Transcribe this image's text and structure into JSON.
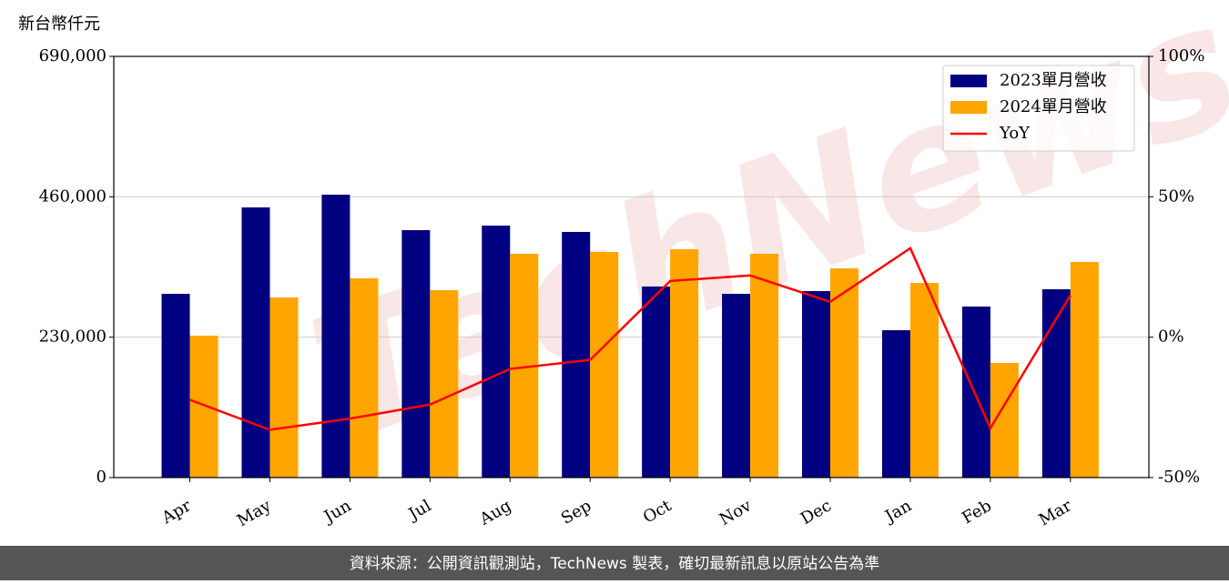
{
  "chart_data": {
    "type": "bar_line",
    "y_label": "新台幣仟元",
    "categories": [
      "Apr",
      "May",
      "Jun",
      "Jul",
      "Aug",
      "Sep",
      "Oct",
      "Nov",
      "Dec",
      "Jan",
      "Feb",
      "Mar"
    ],
    "series": [
      {
        "name": "2023單月營收",
        "color": "#000080",
        "type": "bar",
        "values": [
          301000,
          442600,
          463500,
          405400,
          412800,
          402400,
          313000,
          301000,
          305500,
          241400,
          280200,
          308500
        ]
      },
      {
        "name": "2024單月營收",
        "color": "#ffa500",
        "type": "bar",
        "values": [
          232500,
          295100,
          326400,
          307000,
          366600,
          369600,
          374100,
          366600,
          342800,
          318900,
          187800,
          353200
        ]
      },
      {
        "name": "YoY",
        "color": "#ff0000",
        "type": "line",
        "axis": "y2",
        "values": [
          -22.3,
          -33,
          -29,
          -24,
          -11.3,
          -8.1,
          20,
          22,
          12.6,
          31.7,
          -32.4,
          14.9
        ]
      }
    ],
    "ylim": [
      0,
      690000
    ],
    "yticks": [
      0,
      {
        "value": 230000,
        "label": "230,000"
      },
      {
        "value": 460000,
        "label": "460,000"
      },
      {
        "value": 690000,
        "label": "690,000"
      }
    ],
    "y2lim": [
      -50,
      100
    ],
    "y2ticks": [
      {
        "value": -50,
        "label": "-50%"
      },
      {
        "value": 0,
        "label": "0%"
      },
      {
        "value": 50,
        "label": "50%"
      },
      {
        "value": 100,
        "label": "100%"
      }
    ],
    "grid": true,
    "legend": "upper right",
    "watermark": "TechNews",
    "footer": "資料來源：公開資訊觀測站，TechNews 製表，確切最新訊息以原站公告為準"
  }
}
